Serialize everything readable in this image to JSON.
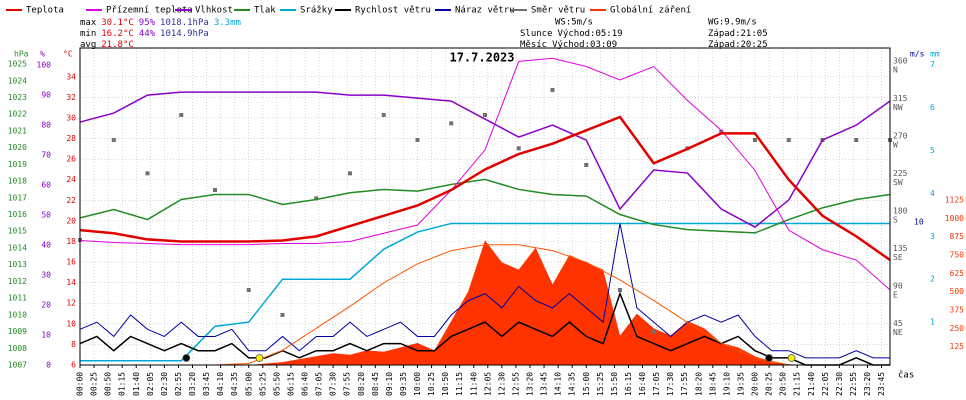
{
  "chart_data": {
    "type": "line",
    "title": "17.7.2023",
    "xlabel": "čas",
    "xlim": [
      0,
      1440
    ],
    "xticks": [
      {
        "value": 0,
        "label": "00:00"
      },
      {
        "value": 25,
        "label": "00:25"
      },
      {
        "value": 50,
        "label": "00:50"
      },
      {
        "value": 75,
        "label": "01:15"
      },
      {
        "value": 100,
        "label": "01:40"
      },
      {
        "value": 125,
        "label": "02:05"
      },
      {
        "value": 150,
        "label": "02:30"
      },
      {
        "value": 175,
        "label": "02:55"
      },
      {
        "value": 200,
        "label": "03:20"
      },
      {
        "value": 225,
        "label": "03:45"
      },
      {
        "value": 250,
        "label": "04:10"
      },
      {
        "value": 275,
        "label": "04:35"
      },
      {
        "value": 300,
        "label": "05:00"
      },
      {
        "value": 325,
        "label": "05:25"
      },
      {
        "value": 350,
        "label": "05:50"
      },
      {
        "value": 375,
        "label": "06:15"
      },
      {
        "value": 400,
        "label": "06:40"
      },
      {
        "value": 425,
        "label": "07:05"
      },
      {
        "value": 450,
        "label": "07:30"
      },
      {
        "value": 475,
        "label": "07:55"
      },
      {
        "value": 500,
        "label": "08:20"
      },
      {
        "value": 525,
        "label": "08:45"
      },
      {
        "value": 550,
        "label": "09:10"
      },
      {
        "value": 575,
        "label": "09:35"
      },
      {
        "value": 600,
        "label": "10:00"
      },
      {
        "value": 625,
        "label": "10:25"
      },
      {
        "value": 650,
        "label": "10:50"
      },
      {
        "value": 675,
        "label": "11:15"
      },
      {
        "value": 700,
        "label": "11:40"
      },
      {
        "value": 725,
        "label": "12:05"
      },
      {
        "value": 750,
        "label": "12:30"
      },
      {
        "value": 775,
        "label": "12:55"
      },
      {
        "value": 800,
        "label": "13:20"
      },
      {
        "value": 825,
        "label": "13:45"
      },
      {
        "value": 850,
        "label": "14:10"
      },
      {
        "value": 875,
        "label": "14:35"
      },
      {
        "value": 900,
        "label": "15:00"
      },
      {
        "value": 925,
        "label": "15:25"
      },
      {
        "value": 950,
        "label": "15:50"
      },
      {
        "value": 975,
        "label": "16:15"
      },
      {
        "value": 1000,
        "label": "16:40"
      },
      {
        "value": 1025,
        "label": "17:05"
      },
      {
        "value": 1050,
        "label": "17:30"
      },
      {
        "value": 1075,
        "label": "17:55"
      },
      {
        "value": 1100,
        "label": "18:20"
      },
      {
        "value": 1125,
        "label": "18:45"
      },
      {
        "value": 1150,
        "label": "19:10"
      },
      {
        "value": 1175,
        "label": "19:35"
      },
      {
        "value": 1200,
        "label": "20:00"
      },
      {
        "value": 1225,
        "label": "20:25"
      },
      {
        "value": 1250,
        "label": "20:50"
      },
      {
        "value": 1275,
        "label": "21:15"
      },
      {
        "value": 1300,
        "label": "21:40"
      },
      {
        "value": 1325,
        "label": "22:05"
      },
      {
        "value": 1350,
        "label": "22:30"
      },
      {
        "value": 1375,
        "label": "22:55"
      },
      {
        "value": 1400,
        "label": "23:20"
      },
      {
        "value": 1425,
        "label": "23:45"
      }
    ],
    "grid": true,
    "axes": {
      "pressure": {
        "label": "hPa",
        "color": "#228b22",
        "lim": [
          1007,
          1025.96
        ],
        "ticks": [
          1007,
          1008,
          1009,
          1010,
          1011,
          1012,
          1013,
          1014,
          1015,
          1016,
          1017,
          1018,
          1019,
          1020,
          1021,
          1022,
          1023,
          1024,
          1025
        ]
      },
      "humidity": {
        "label": "%",
        "color": "#8a00c8",
        "lim": [
          0,
          105.7
        ],
        "ticks": [
          0,
          10,
          20,
          30,
          40,
          50,
          60,
          70,
          80,
          90,
          100
        ]
      },
      "temp": {
        "label": "°C",
        "color": "#e00000",
        "lim": [
          6,
          36.8
        ],
        "ticks": [
          6,
          8,
          10,
          12,
          14,
          16,
          18,
          20,
          22,
          24,
          26,
          28,
          30,
          32,
          34
        ]
      },
      "direction": {
        "color": "#555555",
        "lim": [
          0,
          380.4
        ],
        "ticks": [
          45,
          90,
          135,
          180,
          225,
          270,
          315,
          360
        ],
        "tick_names": [
          "NE",
          "E",
          "SE",
          "S",
          "SW",
          "W",
          "NW",
          "N"
        ]
      },
      "wind": {
        "label": "m/s",
        "color": "#0000a0",
        "lim": [
          0,
          22.2
        ],
        "ticks": [
          10
        ]
      },
      "rain": {
        "label": "mm",
        "color": "#00a8d8",
        "lim": [
          0,
          7.39
        ],
        "ticks": [
          1,
          2,
          3,
          4,
          5,
          6,
          7
        ]
      },
      "radiation": {
        "color": "#ff3300",
        "lim": [
          0,
          2161
        ],
        "ticks": [
          125,
          250,
          375,
          500,
          625,
          750,
          875,
          1000,
          1125
        ]
      }
    },
    "series": [
      {
        "name": "Teplota",
        "color": "#e00000",
        "axis": "temp",
        "kind": "line",
        "width": 2.5,
        "x": [
          0,
          60,
          120,
          180,
          240,
          300,
          360,
          420,
          480,
          540,
          600,
          660,
          720,
          780,
          840,
          900,
          960,
          1020,
          1080,
          1140,
          1200,
          1260,
          1320,
          1380,
          1440
        ],
        "values": [
          19.1,
          18.8,
          18.2,
          18.0,
          18.0,
          18.0,
          18.1,
          18.5,
          19.5,
          20.5,
          21.5,
          23.0,
          25.0,
          26.5,
          27.5,
          28.8,
          30.1,
          25.6,
          27.0,
          28.5,
          28.5,
          24.0,
          20.5,
          18.5,
          16.2
        ]
      },
      {
        "name": "Přízemní teplota",
        "color": "#e000e0",
        "axis": "temp",
        "kind": "line",
        "width": 1,
        "x": [
          0,
          60,
          120,
          180,
          240,
          300,
          360,
          420,
          480,
          540,
          600,
          660,
          720,
          780,
          840,
          900,
          960,
          1020,
          1080,
          1140,
          1200,
          1260,
          1320,
          1380,
          1440
        ],
        "values": [
          18.1,
          17.9,
          17.8,
          17.7,
          17.7,
          17.7,
          17.8,
          17.8,
          18.0,
          18.8,
          19.6,
          23.0,
          26.9,
          35.5,
          35.8,
          35.0,
          33.7,
          35.0,
          31.7,
          28.8,
          24.9,
          19.1,
          17.2,
          16.2,
          13.3
        ]
      },
      {
        "name": "Vlhkost",
        "color": "#8a00c8",
        "axis": "humidity",
        "kind": "line",
        "width": 1.5,
        "x": [
          0,
          60,
          120,
          180,
          240,
          300,
          360,
          420,
          480,
          540,
          600,
          660,
          720,
          780,
          840,
          900,
          960,
          1020,
          1080,
          1140,
          1200,
          1260,
          1320,
          1380,
          1440
        ],
        "values": [
          81,
          84,
          90,
          91,
          91,
          91,
          91,
          91,
          90,
          90,
          89,
          88,
          82,
          76,
          80,
          75,
          52,
          65,
          64,
          52,
          46,
          55,
          75,
          80,
          88
        ]
      },
      {
        "name": "Tlak",
        "color": "#228b22",
        "axis": "pressure",
        "kind": "line",
        "width": 1.5,
        "x": [
          0,
          60,
          120,
          180,
          240,
          300,
          360,
          420,
          480,
          540,
          600,
          660,
          720,
          780,
          840,
          900,
          960,
          1020,
          1080,
          1140,
          1200,
          1260,
          1320,
          1380,
          1440
        ],
        "values": [
          1015.8,
          1016.3,
          1015.7,
          1016.9,
          1017.2,
          1017.2,
          1016.6,
          1016.9,
          1017.3,
          1017.5,
          1017.4,
          1017.8,
          1018.1,
          1017.5,
          1017.2,
          1017.1,
          1016.0,
          1015.4,
          1015.1,
          1015.0,
          1014.9,
          1015.7,
          1016.4,
          1016.9,
          1017.2
        ]
      },
      {
        "name": "Srážky",
        "color": "#00a8d8",
        "axis": "rain",
        "kind": "line",
        "width": 1.5,
        "x": [
          0,
          60,
          120,
          180,
          240,
          300,
          360,
          420,
          480,
          540,
          600,
          660,
          720,
          780,
          840,
          900,
          960,
          1020,
          1080,
          1140,
          1200,
          1260,
          1320,
          1380,
          1440
        ],
        "values": [
          0.1,
          0.1,
          0.1,
          0.1,
          0.9,
          1.0,
          2.0,
          2.0,
          2.0,
          2.7,
          3.1,
          3.3,
          3.3,
          3.3,
          3.3,
          3.3,
          3.3,
          3.3,
          3.3,
          3.3,
          3.3,
          3.3,
          3.3,
          3.3,
          3.3
        ]
      },
      {
        "name": "Rychlost větru",
        "color": "#000000",
        "axis": "wind",
        "kind": "line",
        "width": 1.5,
        "x": [
          0,
          30,
          60,
          90,
          120,
          150,
          180,
          210,
          240,
          270,
          300,
          330,
          360,
          390,
          420,
          450,
          480,
          510,
          540,
          570,
          600,
          630,
          660,
          690,
          720,
          750,
          780,
          810,
          840,
          870,
          900,
          930,
          960,
          990,
          1020,
          1050,
          1080,
          1110,
          1140,
          1170,
          1200,
          1230,
          1260,
          1290,
          1320,
          1350,
          1380,
          1410,
          1440
        ],
        "values": [
          1.5,
          2,
          1,
          2,
          1.5,
          1,
          1.5,
          1,
          1,
          1.5,
          0.5,
          0.5,
          1,
          0.5,
          1,
          1,
          1.5,
          1,
          1.5,
          1.5,
          1,
          1,
          2,
          2.5,
          3,
          2,
          3,
          2.5,
          2,
          3,
          2,
          1.5,
          5,
          2,
          1.5,
          1,
          1.5,
          2,
          1.5,
          2,
          1,
          0.5,
          0.5,
          0,
          0,
          0,
          0.5,
          0,
          0
        ]
      },
      {
        "name": "Náraz větru",
        "color": "#0000a0",
        "axis": "wind",
        "kind": "line",
        "width": 1,
        "x": [
          0,
          30,
          60,
          90,
          120,
          150,
          180,
          210,
          240,
          270,
          300,
          330,
          360,
          390,
          420,
          450,
          480,
          510,
          540,
          570,
          600,
          630,
          660,
          690,
          720,
          750,
          780,
          810,
          840,
          870,
          900,
          930,
          960,
          990,
          1020,
          1050,
          1080,
          1110,
          1140,
          1170,
          1200,
          1230,
          1260,
          1290,
          1320,
          1350,
          1380,
          1410,
          1440
        ],
        "values": [
          2.5,
          3,
          2,
          3.5,
          2.5,
          2,
          3,
          2,
          2,
          2.5,
          1,
          1,
          2,
          1,
          2,
          2,
          3,
          2,
          2.5,
          3,
          2,
          2,
          3.5,
          4.5,
          5,
          4,
          5.5,
          4.5,
          4,
          5,
          4,
          3,
          9.9,
          4,
          3,
          2,
          3,
          3.5,
          3,
          3.5,
          2,
          1,
          1,
          0.5,
          0.5,
          0.5,
          1,
          0.5,
          0.5
        ]
      },
      {
        "name": "Směr větru",
        "color": "#707070",
        "axis": "direction",
        "kind": "scatter",
        "width": 1,
        "x": [
          0,
          60,
          120,
          180,
          240,
          300,
          360,
          420,
          480,
          540,
          600,
          660,
          720,
          780,
          840,
          900,
          960,
          1020,
          1080,
          1140,
          1200,
          1260,
          1320,
          1380,
          1440
        ],
        "values": [
          150,
          270,
          230,
          300,
          210,
          90,
          60,
          200,
          230,
          300,
          270,
          290,
          300,
          260,
          330,
          240,
          90,
          40,
          260,
          280,
          270,
          270,
          270,
          270,
          270
        ]
      },
      {
        "name": "Globální záření",
        "color": "#ff3300",
        "axis": "radiation",
        "kind": "area",
        "width": 1,
        "x": [
          0,
          30,
          60,
          90,
          120,
          150,
          180,
          210,
          240,
          270,
          300,
          330,
          360,
          390,
          420,
          450,
          480,
          510,
          540,
          570,
          600,
          630,
          660,
          690,
          720,
          750,
          780,
          810,
          840,
          870,
          900,
          930,
          960,
          990,
          1020,
          1050,
          1080,
          1110,
          1140,
          1170,
          1200,
          1230,
          1260,
          1290,
          1320,
          1350,
          1380,
          1410,
          1440
        ],
        "values": [
          0,
          0,
          0,
          0,
          0,
          0,
          0,
          0,
          0,
          0,
          0,
          10,
          20,
          40,
          60,
          80,
          70,
          100,
          90,
          120,
          150,
          100,
          300,
          500,
          850,
          700,
          650,
          800,
          550,
          750,
          700,
          650,
          200,
          350,
          250,
          200,
          300,
          250,
          150,
          120,
          60,
          20,
          5,
          0,
          0,
          0,
          0,
          0,
          0
        ]
      }
    ],
    "radiation_max": {
      "color": "#ff5500",
      "axis": "radiation",
      "x": [
        0,
        60,
        120,
        180,
        240,
        300,
        360,
        420,
        480,
        540,
        600,
        660,
        720,
        780,
        840,
        900,
        960,
        1020,
        1080,
        1140,
        1200,
        1260,
        1320,
        1380,
        1440
      ],
      "values": [
        0,
        0,
        0,
        0,
        0,
        10,
        100,
        250,
        400,
        560,
        690,
        780,
        820,
        820,
        780,
        700,
        580,
        440,
        290,
        150,
        50,
        0,
        0,
        0,
        0
      ]
    },
    "stats": [
      {
        "label": "max",
        "items": [
          {
            "text": "30.1°C",
            "color": "#e00000"
          },
          {
            "text": "95%",
            "color": "#8a00c8"
          },
          {
            "text": "1018.1hPa",
            "color": "#3030a0"
          },
          {
            "text": "3.3mm",
            "color": "#00a8d8"
          }
        ]
      },
      {
        "label": "min",
        "items": [
          {
            "text": "16.2°C",
            "color": "#e00000"
          },
          {
            "text": "44%",
            "color": "#8a00c8"
          },
          {
            "text": "1014.9hPa",
            "color": "#3030a0"
          }
        ]
      },
      {
        "label": "avg",
        "items": [
          {
            "text": "21.8°C",
            "color": "#e00000"
          }
        ]
      }
    ],
    "wind_max": [
      "WS:5m/s",
      "WG:9.9m/s"
    ],
    "astro": [
      {
        "label": "Slunce",
        "rise_label": "Východ:",
        "rise": "05:19",
        "set_label": "Západ:",
        "set": "21:05",
        "marker": "#ffee00"
      },
      {
        "label": "Měsíc",
        "rise_label": "Východ:",
        "rise": "03:09",
        "set_label": "Západ:",
        "set": "20:25",
        "marker": "#000000"
      }
    ]
  }
}
